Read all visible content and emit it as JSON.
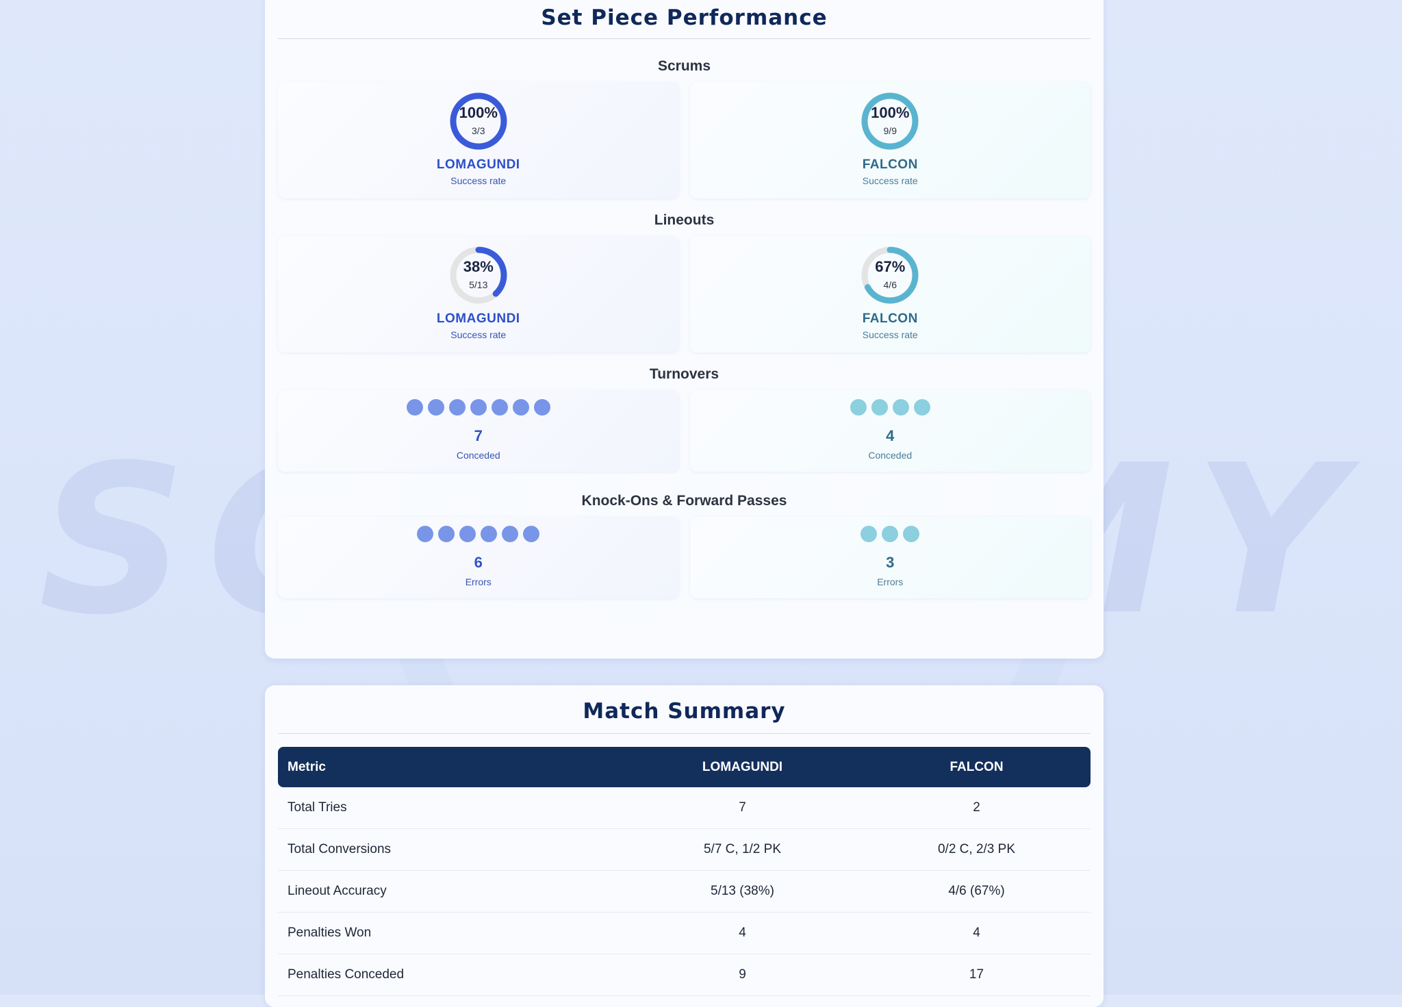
{
  "set_piece": {
    "title": "Set Piece Performance",
    "scrums": {
      "label": "Scrums",
      "home": {
        "team": "LOMAGUNDI",
        "pct": "100%",
        "fraction": "3/3",
        "rate": 1.0,
        "sub": "Success rate"
      },
      "away": {
        "team": "FALCON",
        "pct": "100%",
        "fraction": "9/9",
        "rate": 1.0,
        "sub": "Success rate"
      }
    },
    "lineouts": {
      "label": "Lineouts",
      "home": {
        "team": "LOMAGUNDI",
        "pct": "38%",
        "fraction": "5/13",
        "rate": 0.38,
        "sub": "Success rate"
      },
      "away": {
        "team": "FALCON",
        "pct": "67%",
        "fraction": "4/6",
        "rate": 0.67,
        "sub": "Success rate"
      }
    },
    "turnovers": {
      "label": "Turnovers",
      "home": {
        "count": "7",
        "sub": "Conceded"
      },
      "away": {
        "count": "4",
        "sub": "Conceded"
      }
    },
    "knock_ons": {
      "label": "Knock-Ons & Forward Passes",
      "home": {
        "count": "6",
        "sub": "Errors"
      },
      "away": {
        "count": "3",
        "sub": "Errors"
      }
    }
  },
  "summary": {
    "title": "Match Summary",
    "headers": [
      "Metric",
      "LOMAGUNDI",
      "FALCON"
    ],
    "rows": [
      [
        "Total Tries",
        "7",
        "2"
      ],
      [
        "Total Conversions",
        "5/7 C, 1/2 PK",
        "0/2 C, 2/3 PK"
      ],
      [
        "Lineout Accuracy",
        "5/13 (38%)",
        "4/6 (67%)"
      ],
      [
        "Penalties Won",
        "4",
        "4"
      ],
      [
        "Penalties Conceded",
        "9",
        "17"
      ]
    ]
  },
  "watermark": "SCRUMMY",
  "colors": {
    "home_ring": "#3a5bd9",
    "away_ring": "#5ab4cf",
    "ring_track": "#e4e4e4",
    "header_bg": "#132f5c"
  }
}
